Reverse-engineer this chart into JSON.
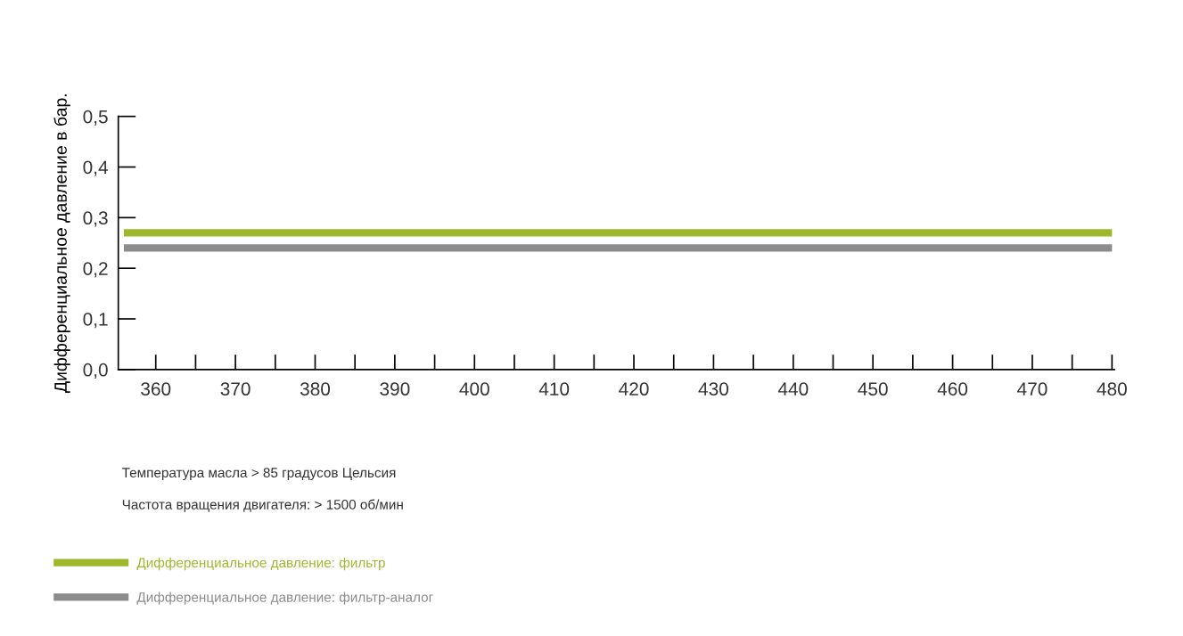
{
  "chart_data": {
    "type": "line",
    "ylabel": "Дифференциальное давление в бар.",
    "x": [
      356,
      480
    ],
    "series": [
      {
        "name": "Дифференциальное давление: фильтр",
        "color": "#9fb72a",
        "values": [
          0.27,
          0.27
        ]
      },
      {
        "name": "Дифференциальное давление: фильтр-аналог",
        "color": "#8c8c8c",
        "values": [
          0.24,
          0.24
        ]
      }
    ],
    "xlim": [
      355.3,
      480.3
    ],
    "xticks": [
      360,
      370,
      380,
      390,
      400,
      410,
      420,
      430,
      440,
      450,
      460,
      470,
      480
    ],
    "ylim": [
      0,
      0.5
    ],
    "yticks": [
      {
        "value": 0,
        "label": "0,0"
      },
      {
        "value": 0.1,
        "label": "0,1"
      },
      {
        "value": 0.2,
        "label": "0,2"
      },
      {
        "value": 0.3,
        "label": "0,3"
      },
      {
        "value": 0.4,
        "label": "0,4"
      },
      {
        "value": 0.5,
        "label": "0,5"
      }
    ],
    "annotations": [
      "Температура масла > 85 градусов Цельсия",
      "Частота вращения двигателя: > 1500 об/мин"
    ],
    "grid": false,
    "legend": "bottom",
    "marker": "none",
    "line_style": "solid"
  }
}
